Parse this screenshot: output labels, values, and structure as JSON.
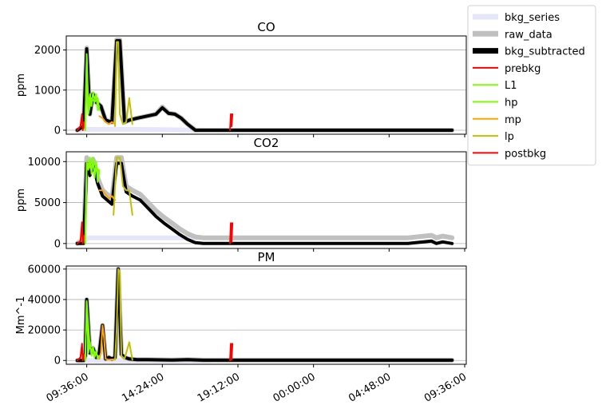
{
  "chart_data": [
    {
      "type": "line",
      "title": "CO",
      "ylabel": "ppm",
      "xlabel": "",
      "ylim": [
        -100,
        2350
      ],
      "yticks": [
        0,
        1000,
        2000
      ],
      "ytick_labels": [
        "0",
        "1000",
        "2000"
      ],
      "grid": "horizontal",
      "series": [
        {
          "name": "bkg_series",
          "color": "#e6e6fa",
          "x": [
            9.2,
            9.7,
            12.9,
            17.5
          ],
          "y": [
            0,
            20,
            20,
            0
          ]
        },
        {
          "name": "raw_data",
          "color": "#c0c0c0",
          "x": [
            9.0,
            9.4,
            9.6,
            9.8,
            10.0,
            10.2,
            10.5,
            10.8,
            11.2,
            11.5,
            11.7,
            12.0,
            12.3,
            12.8,
            13.4,
            14.0,
            14.4,
            14.8,
            15.2,
            15.6,
            16.0,
            16.5,
            20.0,
            30.0,
            32.8
          ],
          "y": [
            0,
            100,
            2050,
            400,
            900,
            700,
            600,
            250,
            200,
            2250,
            2250,
            200,
            250,
            300,
            350,
            400,
            580,
            420,
            400,
            300,
            150,
            0,
            0,
            0,
            0
          ]
        },
        {
          "name": "bkg_subtracted",
          "color": "#000000",
          "x": [
            9.0,
            9.4,
            9.6,
            9.8,
            10.0,
            10.2,
            10.5,
            10.8,
            11.2,
            11.5,
            11.7,
            12.0,
            12.3,
            12.8,
            13.4,
            14.0,
            14.4,
            14.8,
            15.2,
            15.6,
            16.0,
            16.5,
            20.0,
            30.0,
            32.8
          ],
          "y": [
            0,
            100,
            2030,
            400,
            900,
            700,
            600,
            250,
            200,
            2230,
            2230,
            200,
            250,
            300,
            350,
            400,
            560,
            420,
            400,
            300,
            150,
            0,
            0,
            0,
            0
          ]
        },
        {
          "name": "prebkg",
          "color": "#ff0000",
          "x": [
            9.0,
            9.2,
            9.3,
            9.35,
            9.4,
            9.5
          ],
          "y": [
            0,
            100,
            400,
            0,
            200,
            0
          ]
        },
        {
          "name": "L1",
          "color": "#7fff00",
          "x": [
            9.5,
            9.6,
            9.7,
            9.8,
            9.9,
            10.0,
            10.1,
            10.2,
            10.3,
            10.4
          ],
          "y": [
            0,
            1900,
            500,
            900,
            600,
            950,
            750,
            900,
            500,
            600
          ]
        },
        {
          "name": "hp",
          "color": "#7cfc00",
          "x": [
            9.5,
            9.6,
            9.7,
            9.9,
            10.1,
            10.3,
            10.4
          ],
          "y": [
            0,
            1800,
            400,
            800,
            700,
            800,
            500
          ]
        },
        {
          "name": "mp",
          "color": "#ffa500",
          "x": [
            10.4,
            10.6,
            10.8,
            11.0,
            11.2,
            11.4
          ],
          "y": [
            350,
            300,
            200,
            150,
            200,
            150
          ]
        },
        {
          "name": "lp",
          "color": "#c0c000",
          "x": [
            11.4,
            11.5,
            11.6,
            11.7,
            11.9,
            12.1,
            12.3,
            12.5
          ],
          "y": [
            100,
            2200,
            2200,
            400,
            150,
            200,
            800,
            150
          ]
        },
        {
          "name": "postbkg",
          "color": "#ff0000",
          "x": [
            18.7,
            18.75,
            18.8,
            18.85
          ],
          "y": [
            0,
            400,
            100,
            400
          ]
        }
      ]
    },
    {
      "type": "line",
      "title": "CO2",
      "ylabel": "ppm",
      "xlabel": "",
      "ylim": [
        -600,
        11200
      ],
      "yticks": [
        0,
        5000,
        10000
      ],
      "ytick_labels": [
        "0",
        "5000",
        "10000"
      ],
      "grid": "horizontal",
      "series": [
        {
          "name": "bkg_series",
          "color": "#e6e6fa",
          "x": [
            9.2,
            9.7,
            13.0,
            16.5
          ],
          "y": [
            0,
            700,
            700,
            700
          ]
        },
        {
          "name": "raw_data",
          "color": "#c0c0c0",
          "x": [
            9.0,
            9.4,
            9.6,
            9.8,
            10.0,
            10.3,
            10.6,
            10.9,
            11.2,
            11.5,
            11.8,
            12.1,
            12.5,
            13.0,
            13.5,
            14.0,
            14.5,
            15.0,
            15.5,
            16.0,
            16.5,
            17.0,
            20.0,
            30.0,
            31.5,
            31.8,
            32.2,
            32.8
          ],
          "y": [
            0,
            500,
            10500,
            9000,
            10300,
            8000,
            6500,
            6000,
            5500,
            10500,
            10500,
            7000,
            6500,
            6000,
            5000,
            4000,
            3200,
            2500,
            1800,
            1200,
            800,
            700,
            700,
            700,
            1000,
            700,
            900,
            700
          ]
        },
        {
          "name": "bkg_subtracted",
          "color": "#000000",
          "x": [
            9.0,
            9.4,
            9.6,
            9.8,
            10.0,
            10.3,
            10.6,
            10.9,
            11.2,
            11.5,
            11.8,
            12.1,
            12.5,
            13.0,
            13.5,
            14.0,
            14.5,
            15.0,
            15.5,
            16.0,
            16.5,
            17.0,
            20.0,
            30.0,
            31.5,
            31.8,
            32.2,
            32.8
          ],
          "y": [
            0,
            0,
            9800,
            8300,
            9600,
            7300,
            5800,
            5300,
            4800,
            9800,
            9800,
            6300,
            5800,
            5300,
            4300,
            3300,
            2500,
            1800,
            1100,
            500,
            100,
            0,
            0,
            0,
            300,
            0,
            200,
            0
          ]
        },
        {
          "name": "prebkg",
          "color": "#ff0000",
          "x": [
            9.0,
            9.2,
            9.3,
            9.35,
            9.4,
            9.5
          ],
          "y": [
            0,
            300,
            2600,
            0,
            1000,
            0
          ]
        },
        {
          "name": "L1",
          "color": "#7fff00",
          "x": [
            9.5,
            9.6,
            9.7,
            9.8,
            9.9,
            10.0,
            10.1,
            10.2,
            10.3,
            10.4
          ],
          "y": [
            0,
            10000,
            9000,
            10500,
            8500,
            10500,
            8000,
            10000,
            7500,
            9000
          ]
        },
        {
          "name": "hp",
          "color": "#7cfc00",
          "x": [
            9.5,
            9.6,
            9.8,
            10.0,
            10.2,
            10.4
          ],
          "y": [
            0,
            9500,
            10000,
            9800,
            9500,
            8500
          ]
        },
        {
          "name": "mp",
          "color": "#ffa500",
          "x": [
            10.4,
            10.6,
            10.8,
            11.0,
            11.2,
            11.4
          ],
          "y": [
            6500,
            6500,
            6000,
            5500,
            5800,
            5300
          ]
        },
        {
          "name": "lp",
          "color": "#c0c000",
          "x": [
            11.3,
            11.5,
            11.7,
            11.9,
            12.1,
            12.3,
            12.5
          ],
          "y": [
            3500,
            10500,
            10500,
            7000,
            6500,
            6500,
            3500
          ]
        },
        {
          "name": "postbkg",
          "color": "#ff0000",
          "x": [
            18.7,
            18.75,
            18.8,
            18.85
          ],
          "y": [
            0,
            2500,
            200,
            2500
          ]
        }
      ]
    },
    {
      "type": "line",
      "title": "PM",
      "ylabel": "Mm^-1",
      "xlabel": "",
      "ylim": [
        -2500,
        62000
      ],
      "yticks": [
        0,
        20000,
        40000,
        60000
      ],
      "ytick_labels": [
        "0",
        "20000",
        "40000",
        "60000"
      ],
      "grid": "horizontal",
      "series": [
        {
          "name": "bkg_series",
          "color": "#e6e6fa",
          "x": [
            9.2,
            9.7,
            13.0,
            17.5
          ],
          "y": [
            0,
            0,
            0,
            0
          ]
        },
        {
          "name": "raw_data",
          "color": "#c0c0c0",
          "x": [
            9.0,
            9.4,
            9.5,
            9.6,
            9.8,
            10.0,
            10.2,
            10.4,
            10.6,
            10.8,
            11.0,
            11.2,
            11.4,
            11.6,
            11.8,
            12.0,
            12.3,
            12.8,
            13.5,
            15.0,
            16.0,
            17.0,
            30.0,
            32.8
          ],
          "y": [
            0,
            0,
            3000,
            40000,
            5000,
            8000,
            2000,
            5000,
            23000,
            1000,
            2000,
            1000,
            2000,
            60000,
            4000,
            2000,
            1000,
            500,
            500,
            300,
            500,
            200,
            200,
            200
          ]
        },
        {
          "name": "bkg_subtracted",
          "color": "#000000",
          "x": [
            9.0,
            9.4,
            9.5,
            9.6,
            9.8,
            10.0,
            10.2,
            10.4,
            10.6,
            10.8,
            11.0,
            11.2,
            11.4,
            11.6,
            11.8,
            12.0,
            12.3,
            12.8,
            13.5,
            15.0,
            16.0,
            17.0,
            30.0,
            32.8
          ],
          "y": [
            0,
            0,
            3000,
            40000,
            5000,
            8000,
            2000,
            5000,
            23000,
            1000,
            2000,
            1000,
            2000,
            60000,
            4000,
            2000,
            1000,
            500,
            500,
            300,
            500,
            200,
            200,
            200
          ]
        },
        {
          "name": "prebkg",
          "color": "#ff0000",
          "x": [
            9.0,
            9.2,
            9.3,
            9.35,
            9.4,
            9.5
          ],
          "y": [
            0,
            2000,
            11000,
            0,
            4000,
            0
          ]
        },
        {
          "name": "L1",
          "color": "#7fff00",
          "x": [
            9.5,
            9.6,
            9.7,
            9.8,
            9.9,
            10.0,
            10.1,
            10.2,
            10.3,
            10.4
          ],
          "y": [
            0,
            39000,
            5000,
            12000,
            3000,
            9000,
            2000,
            6000,
            1000,
            3000
          ]
        },
        {
          "name": "hp",
          "color": "#7cfc00",
          "x": [
            9.5,
            9.6,
            9.8,
            10.0,
            10.2,
            10.4
          ],
          "y": [
            0,
            38000,
            8000,
            7000,
            4000,
            2000
          ]
        },
        {
          "name": "mp",
          "color": "#ffa500",
          "x": [
            10.4,
            10.5,
            10.6,
            10.7,
            10.8,
            11.0,
            11.4
          ],
          "y": [
            1000,
            5000,
            23000,
            15000,
            1000,
            500,
            800
          ]
        },
        {
          "name": "lp",
          "color": "#c0c000",
          "x": [
            11.4,
            11.5,
            11.6,
            11.7,
            11.8,
            12.0,
            12.3,
            12.5
          ],
          "y": [
            500,
            20000,
            60000,
            58000,
            3000,
            1000,
            12000,
            500
          ]
        },
        {
          "name": "postbkg",
          "color": "#ff0000",
          "x": [
            18.7,
            18.75,
            18.8,
            18.85
          ],
          "y": [
            0,
            11000,
            500,
            11000
          ]
        }
      ]
    }
  ],
  "xaxis": {
    "xlim": [
      8.3,
      33.7
    ],
    "tick_hours": [
      9.6,
      14.4,
      19.2,
      24.0,
      28.8,
      33.6
    ],
    "tick_labels": [
      "09:36:00",
      "14:24:00",
      "19:12:00",
      "00:00:00",
      "04:48:00",
      "09:36:00"
    ],
    "tick_label_rotation": 30
  },
  "legend": {
    "placement": "upper-right-outside",
    "entries": [
      {
        "name": "bkg_series",
        "color": "#e6e6fa"
      },
      {
        "name": "raw_data",
        "color": "#c0c0c0"
      },
      {
        "name": "bkg_subtracted",
        "color": "#000000"
      },
      {
        "name": "prebkg",
        "color": "#ff0000"
      },
      {
        "name": "L1",
        "color": "#7fff00"
      },
      {
        "name": "hp",
        "color": "#7cfc00"
      },
      {
        "name": "mp",
        "color": "#ffa500"
      },
      {
        "name": "lp",
        "color": "#c0c000"
      },
      {
        "name": "postbkg",
        "color": "#ff0000"
      }
    ]
  }
}
